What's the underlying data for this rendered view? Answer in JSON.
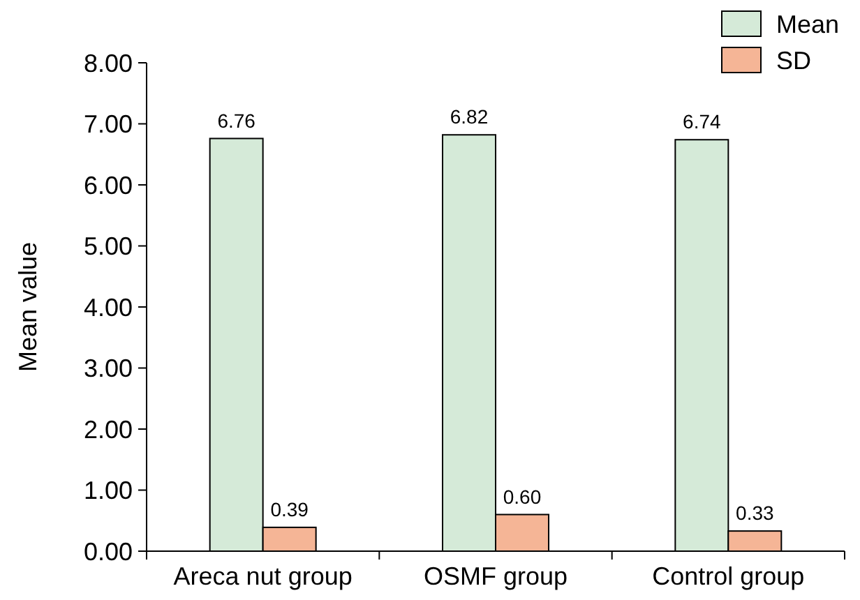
{
  "chart_data": {
    "type": "bar",
    "ylabel": "Mean value",
    "categories": [
      "Areca nut group",
      "OSMF group",
      "Control group"
    ],
    "series": [
      {
        "name": "Mean",
        "color": "#d5ead8",
        "values": [
          6.76,
          6.82,
          6.74
        ],
        "value_labels": [
          "6.76",
          "6.82",
          "6.74"
        ]
      },
      {
        "name": "SD",
        "color": "#f5b596",
        "values": [
          0.39,
          0.6,
          0.33
        ],
        "value_labels": [
          "0.39",
          "0.60",
          "0.33"
        ]
      }
    ],
    "ylim": [
      0,
      8
    ],
    "yticks": [
      {
        "value": 0,
        "label": "0.00"
      },
      {
        "value": 1,
        "label": "1.00"
      },
      {
        "value": 2,
        "label": "2.00"
      },
      {
        "value": 3,
        "label": "3.00"
      },
      {
        "value": 4,
        "label": "4.00"
      },
      {
        "value": 5,
        "label": "5.00"
      },
      {
        "value": 6,
        "label": "6.00"
      },
      {
        "value": 7,
        "label": "7.00"
      },
      {
        "value": 8,
        "label": "8.00"
      }
    ],
    "grid": false,
    "legend": "top right"
  }
}
